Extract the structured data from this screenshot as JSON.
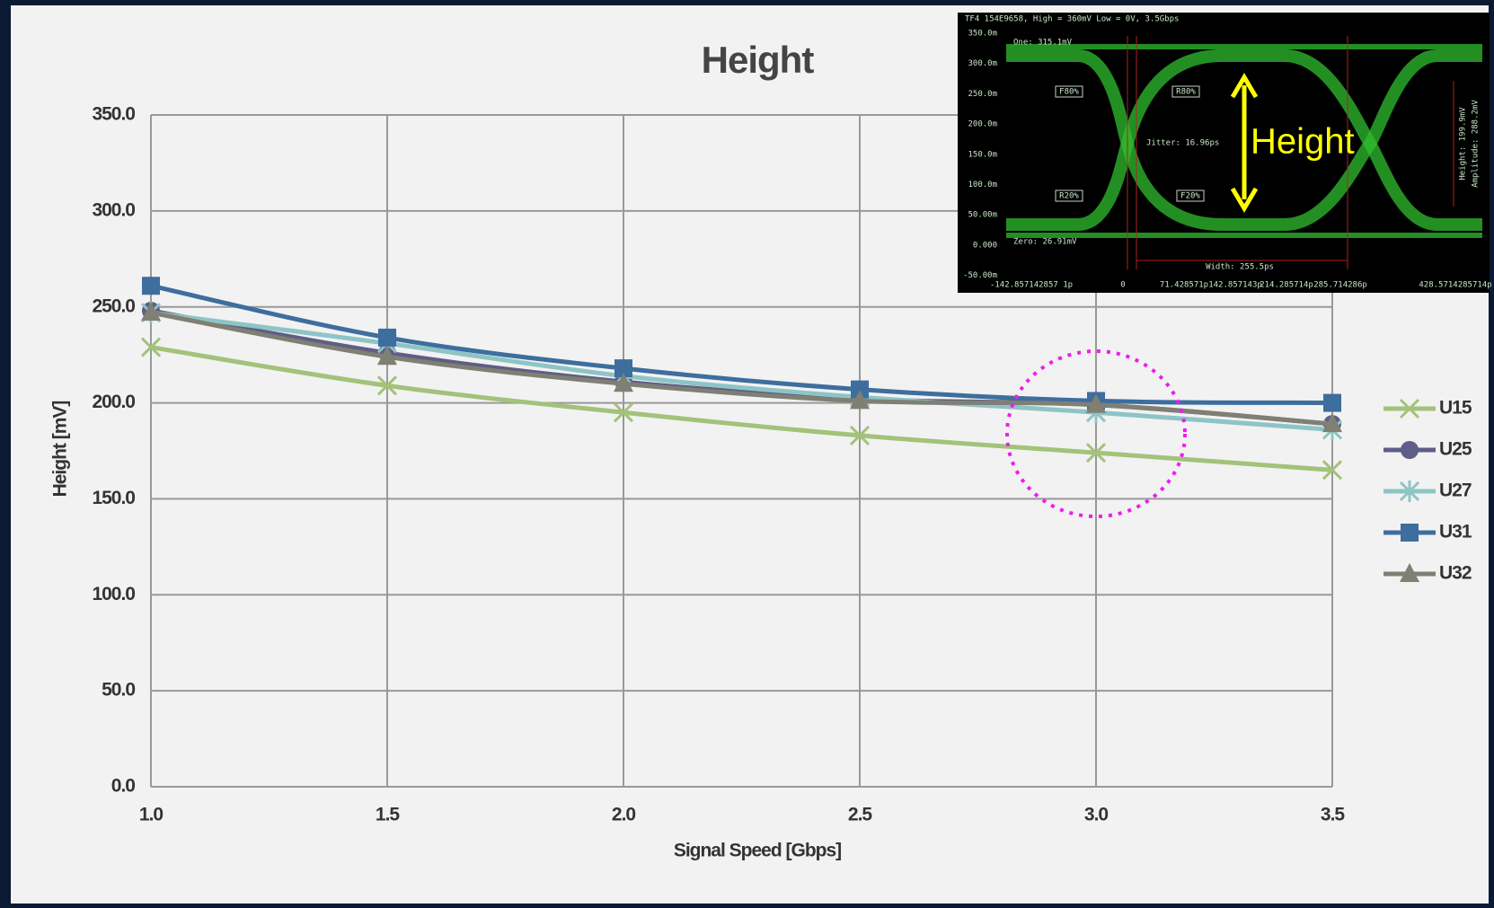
{
  "chart_data": {
    "type": "line",
    "title": "Height",
    "x_label": "Signal Speed [Gbps]",
    "y_label": "Height [mV]",
    "x": [
      1.0,
      1.5,
      2.0,
      2.5,
      3.0,
      3.5
    ],
    "xlim": [
      1.0,
      3.5
    ],
    "xticks": [
      {
        "value": 1.0,
        "label": "1.0"
      },
      {
        "value": 1.5,
        "label": "1.5"
      },
      {
        "value": 2.0,
        "label": "2.0"
      },
      {
        "value": 2.5,
        "label": "2.5"
      },
      {
        "value": 3.0,
        "label": "3.0"
      },
      {
        "value": 3.5,
        "label": "3.5"
      }
    ],
    "ylim": [
      0,
      350
    ],
    "yticks": [
      {
        "value": 0,
        "label": "0.0"
      },
      {
        "value": 50,
        "label": "50.0"
      },
      {
        "value": 100,
        "label": "100.0"
      },
      {
        "value": 150,
        "label": "150.0"
      },
      {
        "value": 200,
        "label": "200.0"
      },
      {
        "value": 250,
        "label": "250.0"
      },
      {
        "value": 300,
        "label": "300.0"
      },
      {
        "value": 350,
        "label": "350.0"
      }
    ],
    "grid": true,
    "legend": "right",
    "series": [
      {
        "name": "U15",
        "color": "#a3c27a",
        "marker": "x",
        "values": [
          229,
          209,
          195,
          183,
          174,
          165
        ]
      },
      {
        "name": "U25",
        "color": "#5e5e86",
        "marker": "circle",
        "values": [
          248,
          226,
          211,
          202,
          199,
          189
        ]
      },
      {
        "name": "U27",
        "color": "#8ec4c6",
        "marker": "asterisk",
        "values": [
          247,
          231,
          214,
          203,
          195,
          186
        ]
      },
      {
        "name": "U31",
        "color": "#3d6e9e",
        "marker": "square",
        "values": [
          261,
          234,
          218,
          207,
          201,
          200
        ]
      },
      {
        "name": "U32",
        "color": "#807f74",
        "marker": "triangle",
        "values": [
          247,
          224,
          210,
          201,
          199,
          189
        ]
      }
    ]
  },
  "inset": {
    "header": "TF4 154E9658, High = 360mV Low = 0V, 3.5Gbps",
    "y_labels": [
      "350.0m",
      "300.0m",
      "250.0m",
      "200.0m",
      "150.0m",
      "100.0m",
      "50.00m",
      "0.000",
      "-50.00m"
    ],
    "x_labels": [
      "-142.857142857 1p",
      "0",
      "71.428571p",
      "142.857143p",
      "214.285714p",
      "285.714286p",
      "428.5714285714p"
    ],
    "one": "One: 315.1mV",
    "zero": "Zero: 26.91mV",
    "jitter": "Jitter: 16.96ps",
    "width": "Width: 255.5ps",
    "markers": [
      "F80%",
      "R80%",
      "R20%",
      "F20%"
    ],
    "side": [
      "Height: 199.9mV",
      "Amplitude: 288.2mV"
    ],
    "annotation": "Height"
  }
}
